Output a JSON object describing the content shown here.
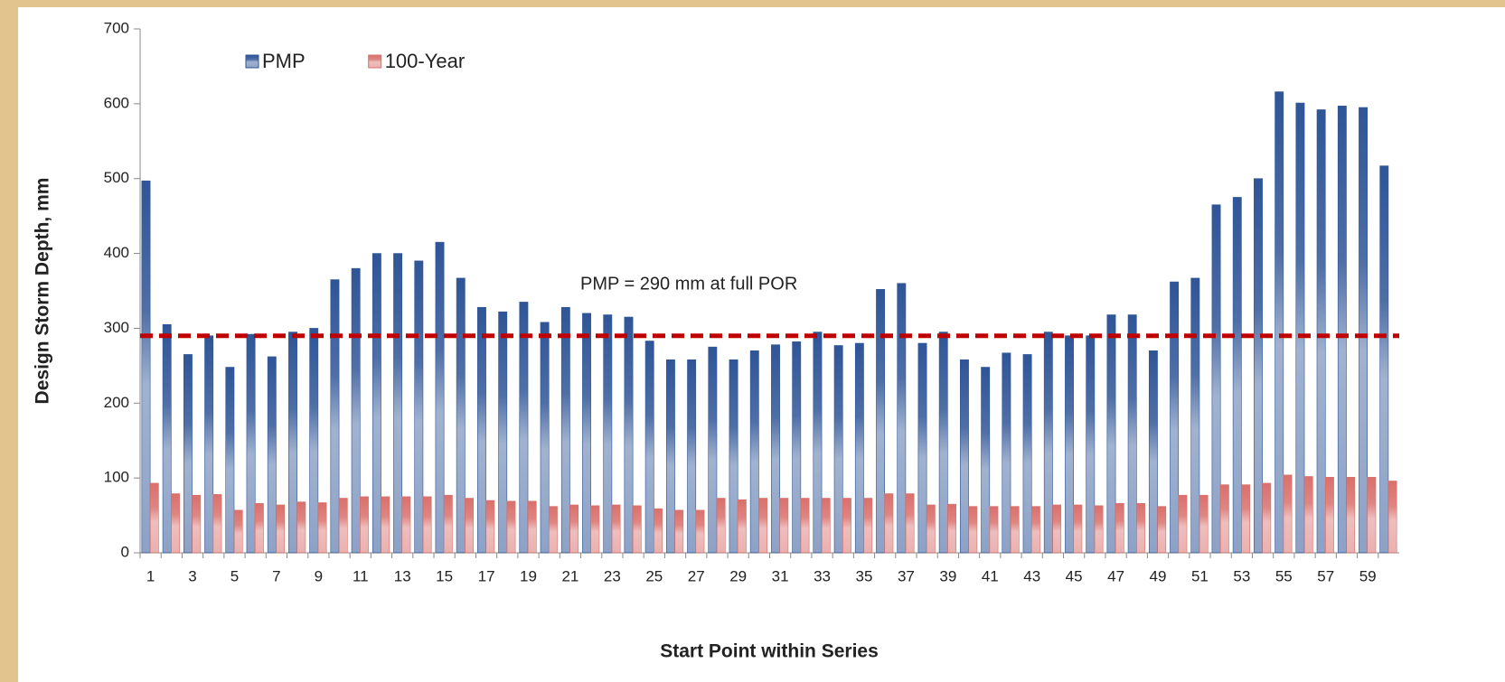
{
  "chart_data": {
    "type": "bar",
    "x_label": "Start Point within Series",
    "y_label": "Design Storm Depth, mm",
    "categories": [
      "1",
      null,
      "3",
      null,
      "5",
      null,
      "7",
      null,
      "9",
      null,
      "11",
      null,
      "13",
      null,
      "15",
      null,
      "17",
      null,
      "19",
      null,
      "21",
      null,
      "23",
      null,
      "25",
      null,
      "27",
      null,
      "29",
      null,
      "31",
      null,
      "33",
      null,
      "35",
      null,
      "37",
      null,
      "39",
      null,
      "41",
      null,
      "43",
      null,
      "45",
      null,
      "47",
      null,
      "49",
      null,
      "51",
      null,
      "53",
      null,
      "55",
      null,
      "57",
      null,
      "59",
      null
    ],
    "series": [
      {
        "name": "PMP",
        "color": "#2f5597",
        "values": [
          497,
          305,
          265,
          290,
          248,
          292,
          262,
          295,
          300,
          365,
          380,
          400,
          400,
          390,
          415,
          367,
          328,
          322,
          335,
          308,
          328,
          320,
          318,
          315,
          283,
          258,
          258,
          275,
          258,
          270,
          278,
          282,
          295,
          277,
          280,
          352,
          360,
          280,
          295,
          258,
          248,
          267,
          265,
          295,
          290,
          290,
          318,
          318,
          270,
          362,
          367,
          465,
          475,
          500,
          616,
          601,
          592,
          597,
          595,
          517
        ]
      },
      {
        "name": "100-Year",
        "color": "#d9706c",
        "values": [
          93,
          79,
          77,
          78,
          57,
          66,
          64,
          68,
          67,
          73,
          75,
          75,
          75,
          75,
          77,
          73,
          70,
          69,
          69,
          62,
          64,
          63,
          64,
          63,
          59,
          57,
          57,
          73,
          71,
          73,
          73,
          73,
          73,
          73,
          73,
          79,
          79,
          64,
          65,
          62,
          62,
          62,
          62,
          64,
          64,
          63,
          66,
          66,
          62,
          77,
          77,
          91,
          91,
          93,
          104,
          102,
          101,
          101,
          101,
          96
        ]
      }
    ],
    "reference_line": {
      "value": 290,
      "label": "PMP = 290 mm at full POR",
      "color": "#c00000"
    },
    "ylim": [
      0,
      700
    ],
    "yticks": [
      0,
      100,
      200,
      300,
      400,
      500,
      600,
      700
    ],
    "grid": false,
    "legend": "top-left"
  }
}
